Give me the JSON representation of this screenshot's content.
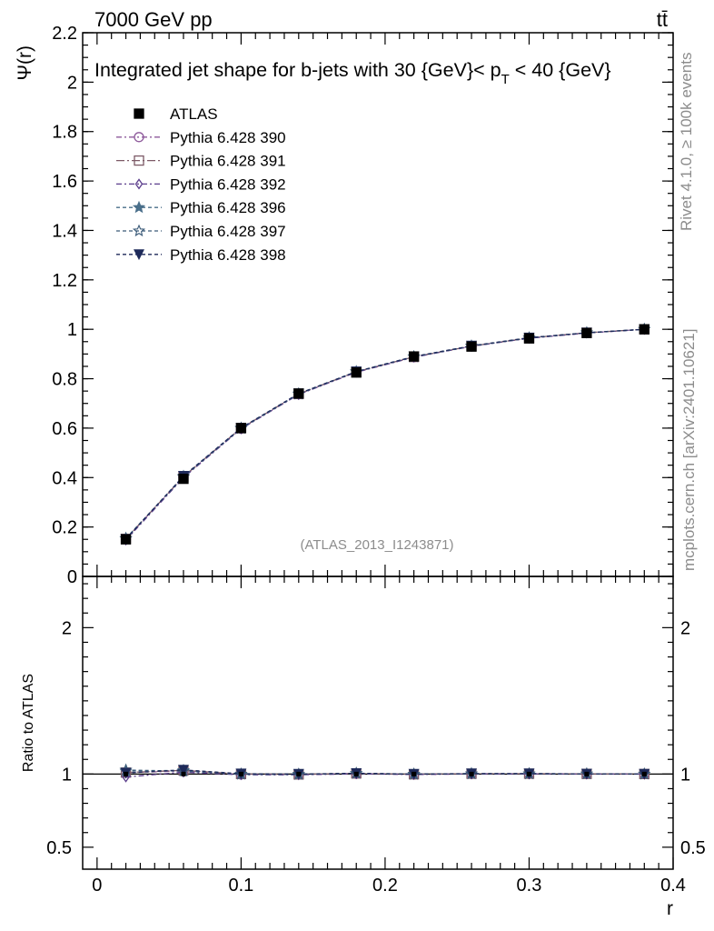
{
  "header": {
    "energy_label": "7000 GeV pp",
    "process_label": "tt̄"
  },
  "side_labels": {
    "rivet": "Rivet 4.1.0, ≥ 100k events",
    "mcplots": "mcplots.cern.ch [arXiv:2401.10621]"
  },
  "analysis_tag": "(ATLAS_2013_I1243871)",
  "chart_data": [
    {
      "type": "line",
      "title": "Integrated jet shape for b-jets with 30 {GeV}< p_T < 40 {GeV}",
      "title_parts": {
        "main": "Integrated jet shape for b-jets with 30 {GeV}< p",
        "sub": "T",
        "tail": " < 40 {GeV}"
      },
      "xlabel": "r",
      "ylabel": "Ψ(r)",
      "xlim": [
        -0.01,
        0.4
      ],
      "ylim": [
        0,
        2.2
      ],
      "yticks": [
        0,
        0.2,
        0.4,
        0.6,
        0.8,
        1,
        1.2,
        1.4,
        1.6,
        1.8,
        2,
        2.2
      ],
      "ytick_labels": [
        "0",
        "0.2",
        "0.4",
        "0.6",
        "0.8",
        "1",
        "1.2",
        "1.4",
        "1.6",
        "1.8",
        "2",
        "2.2"
      ],
      "x": [
        0.02,
        0.06,
        0.1,
        0.14,
        0.18,
        0.22,
        0.26,
        0.3,
        0.34,
        0.38
      ],
      "legend_position": "top-left",
      "series": [
        {
          "name": "ATLAS",
          "marker": "filled-square",
          "color": "#000000",
          "values": [
            0.15,
            0.395,
            0.6,
            0.74,
            0.825,
            0.89,
            0.93,
            0.963,
            0.985,
            1.0
          ]
        },
        {
          "name": "Pythia 6.428 390",
          "marker": "open-circle",
          "color": "#8e5a9b",
          "dash": "6,3,2,3",
          "values": [
            0.152,
            0.402,
            0.598,
            0.737,
            0.826,
            0.887,
            0.931,
            0.964,
            0.985,
            1.0
          ]
        },
        {
          "name": "Pythia 6.428 391",
          "marker": "open-square",
          "color": "#7d5a67",
          "dash": "9,3,2,3",
          "values": [
            0.152,
            0.404,
            0.6,
            0.738,
            0.828,
            0.888,
            0.932,
            0.965,
            0.986,
            1.0
          ]
        },
        {
          "name": "Pythia 6.428 392",
          "marker": "open-diamond",
          "color": "#5b3d8c",
          "dash": "6,3,2,3",
          "values": [
            0.147,
            0.4,
            0.597,
            0.736,
            0.827,
            0.887,
            0.931,
            0.964,
            0.985,
            1.0
          ]
        },
        {
          "name": "Pythia 6.428 396",
          "marker": "filled-star",
          "color": "#4a6f8a",
          "dash": "4,3",
          "values": [
            0.153,
            0.405,
            0.599,
            0.738,
            0.829,
            0.889,
            0.932,
            0.965,
            0.986,
            1.0
          ]
        },
        {
          "name": "Pythia 6.428 397",
          "marker": "open-star",
          "color": "#3a5a78",
          "dash": "4,3",
          "values": [
            0.154,
            0.403,
            0.6,
            0.739,
            0.828,
            0.889,
            0.932,
            0.965,
            0.986,
            1.0
          ]
        },
        {
          "name": "Pythia 6.428 398",
          "marker": "filled-triangle-down",
          "color": "#1e2a5a",
          "dash": "4,3",
          "values": [
            0.151,
            0.406,
            0.601,
            0.74,
            0.829,
            0.89,
            0.933,
            0.966,
            0.986,
            1.0
          ]
        }
      ]
    },
    {
      "type": "line",
      "title": "",
      "xlabel": "r",
      "ylabel": "Ratio to ATLAS",
      "xlim": [
        -0.01,
        0.4
      ],
      "ylim": [
        0.35,
        2.35
      ],
      "yticks": [
        0.5,
        1,
        2
      ],
      "ytick_labels": [
        "0.5",
        "1",
        "2"
      ],
      "xticks": [
        0,
        0.1,
        0.2,
        0.3,
        0.4
      ],
      "xtick_labels": [
        "0",
        "0.1",
        "0.2",
        "0.3",
        "0.4"
      ],
      "x": [
        0.02,
        0.06,
        0.1,
        0.14,
        0.18,
        0.22,
        0.26,
        0.3,
        0.34,
        0.38
      ],
      "series": [
        {
          "name": "Pythia 6.428 390",
          "values": [
            1.01,
            1.02,
            0.997,
            0.996,
            1.001,
            0.997,
            1.001,
            1.001,
            1.0,
            1.0
          ]
        },
        {
          "name": "Pythia 6.428 391",
          "values": [
            1.01,
            1.025,
            1.0,
            0.997,
            1.004,
            0.998,
            1.002,
            1.002,
            1.001,
            1.0
          ]
        },
        {
          "name": "Pythia 6.428 392",
          "values": [
            0.98,
            1.013,
            0.995,
            0.995,
            1.002,
            0.997,
            1.001,
            1.001,
            1.0,
            1.0
          ]
        },
        {
          "name": "Pythia 6.428 396",
          "values": [
            1.02,
            1.025,
            0.998,
            0.997,
            1.005,
            0.999,
            1.002,
            1.002,
            1.001,
            1.0
          ]
        },
        {
          "name": "Pythia 6.428 397",
          "values": [
            1.027,
            1.02,
            1.0,
            0.999,
            1.004,
            0.999,
            1.002,
            1.002,
            1.001,
            1.0
          ]
        },
        {
          "name": "Pythia 6.428 398",
          "values": [
            1.007,
            1.028,
            1.002,
            1.0,
            1.005,
            1.0,
            1.003,
            1.003,
            1.001,
            1.0
          ]
        }
      ]
    }
  ]
}
